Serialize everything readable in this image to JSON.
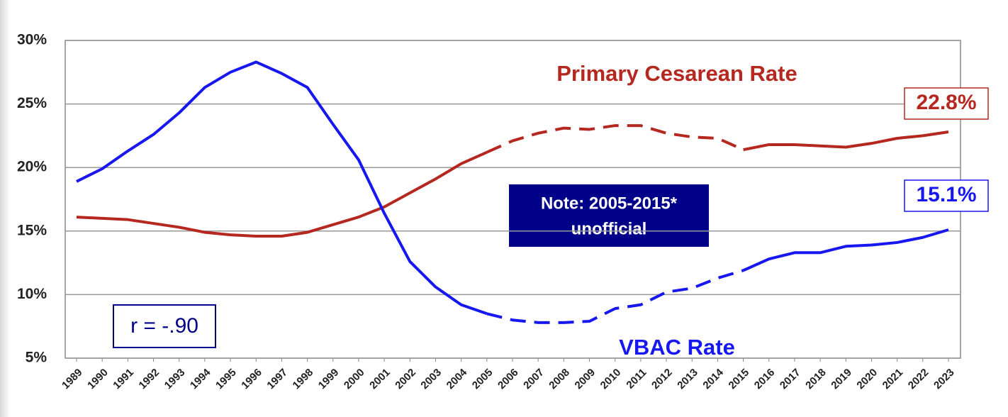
{
  "chart_data": {
    "type": "line",
    "categories": [
      "1989",
      "1990",
      "1991",
      "1992",
      "1993",
      "1994",
      "1995",
      "1996",
      "1997",
      "1998",
      "1999",
      "2000",
      "2001",
      "2002",
      "2003",
      "2004",
      "2005",
      "2006",
      "2007",
      "2008",
      "2009",
      "2010",
      "2011",
      "2012",
      "2013",
      "2014",
      "2015",
      "2016",
      "2017",
      "2018",
      "2019",
      "2020",
      "2021",
      "2022",
      "2023"
    ],
    "series": [
      {
        "name": "Primary Cesarean Rate",
        "color": "#b5281f",
        "values": [
          16.1,
          16.0,
          15.9,
          15.6,
          15.3,
          14.9,
          14.7,
          14.6,
          14.6,
          14.9,
          15.5,
          16.1,
          16.9,
          18.0,
          19.1,
          20.3,
          21.2,
          22.1,
          22.7,
          23.1,
          23.0,
          23.3,
          23.3,
          22.7,
          22.4,
          22.3,
          21.4,
          21.8,
          21.8,
          21.7,
          21.6,
          21.9,
          22.3,
          22.5,
          22.8
        ],
        "value_labels": [
          null,
          null,
          null,
          null,
          null,
          null,
          null,
          null,
          null,
          null,
          null,
          null,
          null,
          null,
          null,
          null,
          null,
          null,
          null,
          null,
          null,
          null,
          null,
          null,
          null,
          null,
          null,
          null,
          null,
          null,
          null,
          null,
          null,
          null,
          "22.8%"
        ]
      },
      {
        "name": "VBAC Rate",
        "color": "#1717f0",
        "values": [
          18.9,
          19.9,
          21.3,
          22.6,
          24.3,
          26.3,
          27.5,
          28.3,
          27.4,
          26.3,
          23.4,
          20.6,
          16.4,
          12.6,
          10.6,
          9.2,
          8.5,
          8.0,
          7.8,
          7.8,
          7.9,
          8.9,
          9.2,
          10.2,
          10.5,
          11.3,
          11.9,
          12.8,
          13.3,
          13.3,
          13.8,
          13.9,
          14.1,
          14.5,
          15.1
        ],
        "value_labels": [
          null,
          null,
          null,
          null,
          null,
          null,
          null,
          null,
          null,
          null,
          null,
          null,
          null,
          null,
          null,
          null,
          null,
          null,
          null,
          null,
          null,
          null,
          null,
          null,
          null,
          null,
          null,
          null,
          null,
          null,
          null,
          null,
          null,
          null,
          "15.1%"
        ]
      }
    ],
    "dash_from": "2005",
    "dash_to": "2015",
    "ylim": [
      5,
      30
    ],
    "yticks": [
      {
        "value": 5,
        "label": "5%"
      },
      {
        "value": 10,
        "label": "10%"
      },
      {
        "value": 15,
        "label": "15%"
      },
      {
        "value": 20,
        "label": "20%"
      },
      {
        "value": 25,
        "label": "25%"
      },
      {
        "value": 30,
        "label": "30%"
      }
    ],
    "grid": true,
    "annotations": {
      "note": [
        "Note: 2005-2015*",
        "unofficial"
      ],
      "correlation": "r = -.90"
    }
  }
}
